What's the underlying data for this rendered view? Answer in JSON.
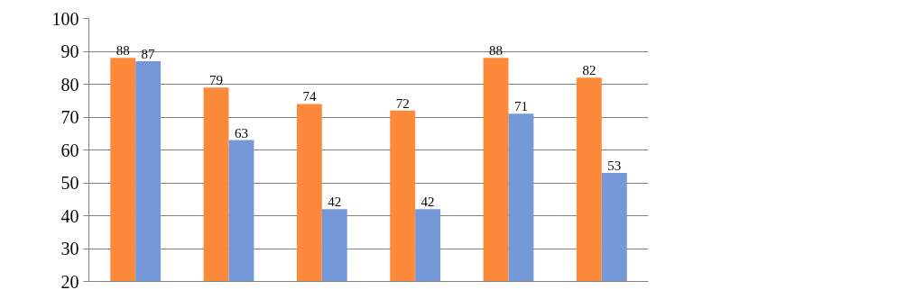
{
  "chart_data": {
    "type": "bar",
    "categories": [
      null,
      null,
      null,
      null,
      null,
      null
    ],
    "series": [
      {
        "color": "#fd8a3a",
        "values": [
          88,
          79,
          74,
          72,
          88,
          82
        ]
      },
      {
        "color": "#7598d8",
        "values": [
          87,
          63,
          42,
          42,
          71,
          53
        ]
      }
    ],
    "ylim": [
      20,
      100
    ],
    "yticks": [
      20,
      30,
      40,
      50,
      60,
      70,
      80,
      90,
      100
    ],
    "grid": "y",
    "data_labels": true
  }
}
